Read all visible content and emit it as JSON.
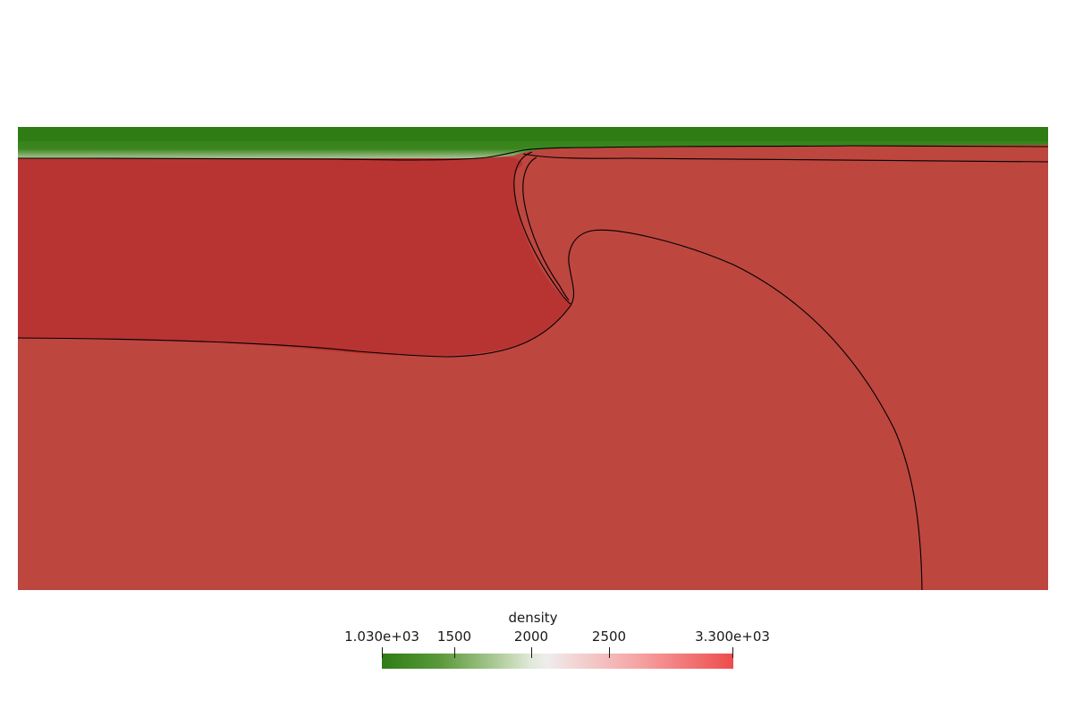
{
  "scalar_bar": {
    "title": "density",
    "ticks": [
      "1.030e+03",
      "1500",
      "2000",
      "2500",
      "3.300e+03"
    ],
    "min": 1030,
    "max": 3300,
    "colors": {
      "low": "#2e7d14",
      "mid": "#efeded",
      "high": "#ee4c4c"
    }
  },
  "field_colors": {
    "ocean": "#2f7c14",
    "upper_plate": "#b83432",
    "mantle": "#bd463f"
  }
}
